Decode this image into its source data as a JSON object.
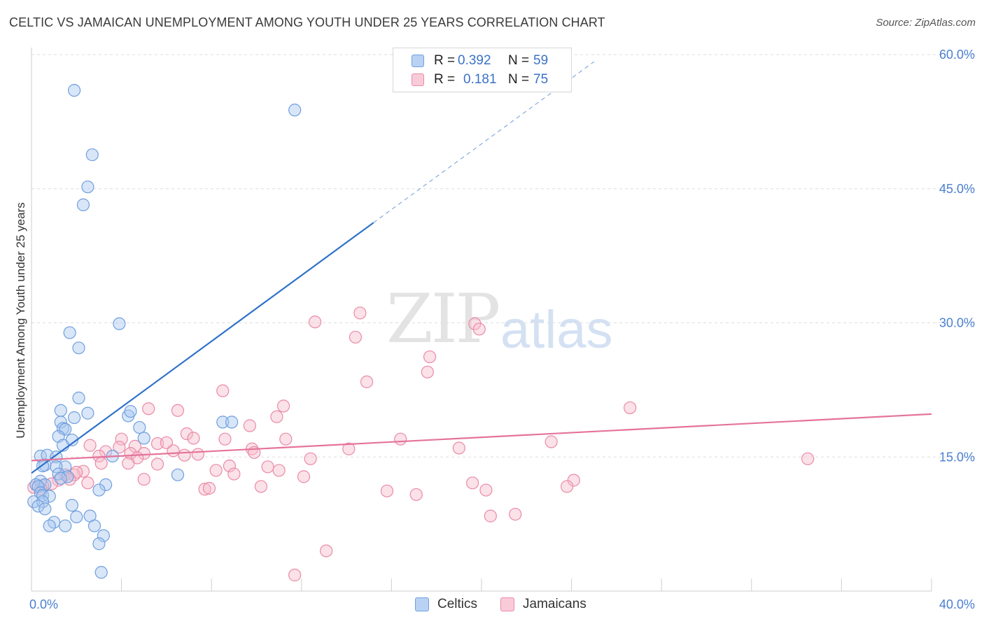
{
  "title": "CELTIC VS JAMAICAN UNEMPLOYMENT AMONG YOUTH UNDER 25 YEARS CORRELATION CHART",
  "source": "Source: ZipAtlas.com",
  "watermark": {
    "zip": "ZIP",
    "atlas": "atlas"
  },
  "legend": {
    "rows": [
      {
        "r_label": "R =",
        "r_value": "0.392",
        "n_label": "N =",
        "n_value": "59"
      },
      {
        "r_label": "R =",
        "r_value": "0.181",
        "n_label": "N =",
        "n_value": "75"
      }
    ]
  },
  "bottom_legend": [
    "Celtics",
    "Jamaicans"
  ],
  "colors": {
    "celtics_fill": "#a9c8f0",
    "celtics_stroke": "#6f9fde",
    "celtics_line": "#2f72c9",
    "jamaicans_fill": "#f6bccd",
    "jamaicans_stroke": "#ea8aa8",
    "jamaicans_line": "#e5739b",
    "tick": "#4a7fd0",
    "grid": "#dedede"
  },
  "chart_data": {
    "type": "scatter",
    "title": "CELTIC VS JAMAICAN UNEMPLOYMENT AMONG YOUTH UNDER 25 YEARS CORRELATION CHART",
    "xlabel": "",
    "ylabel": "Unemployment Among Youth under 25 years",
    "xlim": [
      0,
      40
    ],
    "ylim": [
      0,
      60
    ],
    "x_tick_labels": [
      "0.0%",
      "40.0%"
    ],
    "y_ticks": [
      15,
      30,
      45,
      60
    ],
    "y_tick_labels": [
      "15.0%",
      "30.0%",
      "45.0%",
      "60.0%"
    ],
    "series": [
      {
        "name": "Celtics",
        "R": 0.392,
        "N": 59,
        "trend": {
          "x0": 0,
          "y0": 13.2,
          "x1": 15.2,
          "y1": 41.2,
          "dash_to_x": 25.0,
          "dash_to_y": 59.2
        },
        "points": [
          [
            1.9,
            56
          ],
          [
            11.7,
            53.8
          ],
          [
            2.7,
            48.8
          ],
          [
            2.5,
            45.2
          ],
          [
            2.3,
            43.2
          ],
          [
            3.9,
            29.9
          ],
          [
            1.7,
            28.9
          ],
          [
            2.1,
            27.2
          ],
          [
            2.1,
            21.6
          ],
          [
            1.3,
            20.2
          ],
          [
            2.5,
            19.9
          ],
          [
            4.3,
            19.6
          ],
          [
            4.4,
            20.1
          ],
          [
            1.9,
            19.4
          ],
          [
            1.3,
            18.9
          ],
          [
            8.5,
            18.9
          ],
          [
            8.9,
            18.9
          ],
          [
            1.4,
            18.2
          ],
          [
            1.5,
            18.1
          ],
          [
            4.8,
            18.3
          ],
          [
            1.2,
            17.3
          ],
          [
            1.8,
            16.9
          ],
          [
            5.0,
            17.1
          ],
          [
            1.4,
            16.3
          ],
          [
            0.4,
            15.1
          ],
          [
            0.7,
            15.2
          ],
          [
            1.1,
            15.0
          ],
          [
            3.6,
            15.1
          ],
          [
            0.6,
            14.1
          ],
          [
            0.5,
            14.0
          ],
          [
            1.5,
            13.9
          ],
          [
            1.1,
            13.9
          ],
          [
            1.2,
            13.1
          ],
          [
            0.4,
            12.3
          ],
          [
            1.6,
            12.8
          ],
          [
            1.3,
            12.6
          ],
          [
            6.5,
            13.0
          ],
          [
            0.2,
            11.9
          ],
          [
            0.6,
            11.9
          ],
          [
            3.3,
            11.9
          ],
          [
            0.3,
            11.7
          ],
          [
            3.0,
            11.3
          ],
          [
            0.4,
            11.0
          ],
          [
            0.5,
            10.7
          ],
          [
            0.8,
            10.6
          ],
          [
            0.1,
            10.0
          ],
          [
            0.5,
            10.0
          ],
          [
            0.3,
            9.5
          ],
          [
            0.6,
            9.2
          ],
          [
            1.8,
            9.6
          ],
          [
            1.0,
            7.7
          ],
          [
            0.8,
            7.3
          ],
          [
            1.5,
            7.3
          ],
          [
            2.6,
            8.4
          ],
          [
            2.0,
            8.3
          ],
          [
            2.8,
            7.3
          ],
          [
            3.2,
            6.2
          ],
          [
            3.0,
            5.3
          ],
          [
            3.1,
            2.1
          ]
        ]
      },
      {
        "name": "Jamaicans",
        "R": 0.181,
        "N": 75,
        "trend": {
          "x0": 0,
          "y0": 14.6,
          "x1": 40,
          "y1": 19.8
        },
        "points": [
          [
            14.6,
            31.1
          ],
          [
            12.6,
            30.1
          ],
          [
            19.7,
            29.9
          ],
          [
            19.9,
            29.3
          ],
          [
            14.4,
            28.4
          ],
          [
            17.7,
            26.2
          ],
          [
            17.6,
            24.5
          ],
          [
            14.9,
            23.4
          ],
          [
            8.5,
            22.4
          ],
          [
            11.2,
            20.7
          ],
          [
            26.6,
            20.5
          ],
          [
            5.2,
            20.4
          ],
          [
            6.5,
            20.2
          ],
          [
            10.9,
            19.5
          ],
          [
            9.7,
            18.5
          ],
          [
            6.9,
            17.6
          ],
          [
            7.2,
            17.1
          ],
          [
            8.6,
            17.0
          ],
          [
            4.0,
            17.0
          ],
          [
            11.3,
            17.0
          ],
          [
            16.4,
            17.0
          ],
          [
            23.1,
            16.7
          ],
          [
            2.6,
            16.3
          ],
          [
            4.6,
            16.2
          ],
          [
            3.9,
            16.1
          ],
          [
            5.6,
            16.5
          ],
          [
            6.0,
            16.6
          ],
          [
            9.8,
            15.9
          ],
          [
            14.1,
            15.9
          ],
          [
            19.0,
            16.0
          ],
          [
            3.3,
            15.6
          ],
          [
            5.0,
            15.4
          ],
          [
            4.4,
            15.4
          ],
          [
            6.3,
            15.7
          ],
          [
            6.8,
            15.2
          ],
          [
            7.4,
            15.3
          ],
          [
            9.9,
            15.5
          ],
          [
            12.4,
            14.8
          ],
          [
            34.5,
            14.8
          ],
          [
            4.7,
            14.9
          ],
          [
            3.0,
            15.1
          ],
          [
            3.1,
            14.3
          ],
          [
            4.3,
            14.3
          ],
          [
            5.6,
            14.2
          ],
          [
            8.8,
            14.0
          ],
          [
            10.5,
            13.9
          ],
          [
            11.0,
            13.5
          ],
          [
            2.3,
            13.4
          ],
          [
            1.5,
            13.0
          ],
          [
            1.9,
            13.0
          ],
          [
            2.0,
            13.3
          ],
          [
            8.2,
            13.5
          ],
          [
            9.0,
            13.1
          ],
          [
            12.1,
            12.8
          ],
          [
            2.5,
            12.1
          ],
          [
            1.7,
            12.5
          ],
          [
            1.2,
            12.4
          ],
          [
            5.0,
            12.5
          ],
          [
            24.1,
            12.4
          ],
          [
            0.9,
            12.0
          ],
          [
            0.5,
            11.8
          ],
          [
            0.1,
            11.6
          ],
          [
            0.4,
            11.4
          ],
          [
            7.7,
            11.4
          ],
          [
            7.9,
            11.5
          ],
          [
            10.2,
            11.7
          ],
          [
            19.6,
            12.1
          ],
          [
            20.2,
            11.3
          ],
          [
            23.8,
            11.7
          ],
          [
            15.8,
            11.2
          ],
          [
            17.1,
            10.8
          ],
          [
            20.4,
            8.4
          ],
          [
            21.5,
            8.6
          ],
          [
            13.1,
            4.5
          ],
          [
            11.7,
            1.8
          ]
        ]
      }
    ]
  }
}
